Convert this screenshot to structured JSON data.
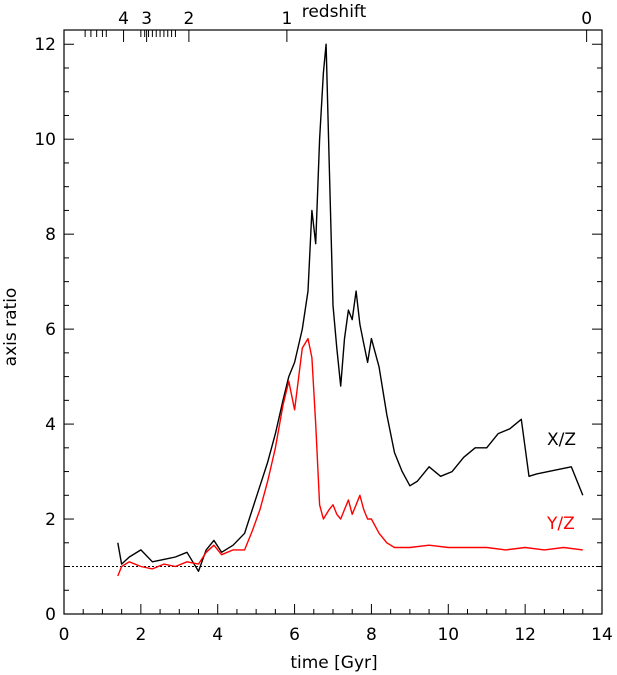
{
  "chart_data": {
    "type": "line",
    "title": "",
    "xlabel": "time [Gyr]",
    "ylabel": "axis ratio",
    "top_axis_label": "redshift",
    "xlim": [
      0,
      14
    ],
    "ylim": [
      0,
      12.3
    ],
    "grid": false,
    "x_ticks": [
      0,
      2,
      4,
      6,
      8,
      10,
      12,
      14
    ],
    "x_tick_labels": [
      "0",
      "2",
      "4",
      "6",
      "8",
      "10",
      "12",
      "14"
    ],
    "y_ticks": [
      0,
      2,
      4,
      6,
      8,
      10,
      12
    ],
    "y_tick_labels": [
      "0",
      "2",
      "4",
      "6",
      "8",
      "10",
      "12"
    ],
    "redshift_ticks": [
      {
        "label": "4",
        "time": 1.55
      },
      {
        "label": "3",
        "time": 2.15
      },
      {
        "label": "2",
        "time": 3.25
      },
      {
        "label": "1",
        "time": 5.8
      },
      {
        "label": "0",
        "time": 13.6
      }
    ],
    "redshift_minor_ticks": [
      0.55,
      0.7,
      0.85,
      1.0,
      1.1,
      2.0,
      2.1,
      2.2,
      2.3,
      2.4,
      2.5,
      2.6,
      2.7,
      2.8,
      2.9
    ],
    "reference_line": {
      "y": 1.0,
      "style": "dotted"
    },
    "series": [
      {
        "name": "X/Z",
        "color": "#000000",
        "x": [
          1.4,
          1.5,
          1.7,
          2.0,
          2.3,
          2.6,
          2.9,
          3.2,
          3.5,
          3.7,
          3.9,
          4.1,
          4.4,
          4.7,
          4.9,
          5.1,
          5.3,
          5.5,
          5.7,
          5.85,
          6.0,
          6.2,
          6.35,
          6.45,
          6.55,
          6.65,
          6.75,
          6.82,
          6.9,
          7.0,
          7.1,
          7.2,
          7.3,
          7.4,
          7.5,
          7.6,
          7.7,
          7.8,
          7.9,
          8.0,
          8.2,
          8.4,
          8.6,
          8.8,
          9.0,
          9.2,
          9.5,
          9.8,
          10.1,
          10.4,
          10.7,
          11.0,
          11.3,
          11.6,
          11.9,
          12.1,
          12.3,
          12.6,
          12.9,
          13.2,
          13.5
        ],
        "y": [
          1.5,
          1.05,
          1.2,
          1.35,
          1.1,
          1.15,
          1.2,
          1.3,
          0.9,
          1.35,
          1.55,
          1.3,
          1.45,
          1.7,
          2.2,
          2.7,
          3.2,
          3.8,
          4.5,
          5.0,
          5.3,
          6.0,
          6.8,
          8.5,
          7.8,
          10.0,
          11.4,
          12.0,
          9.5,
          6.5,
          5.6,
          4.8,
          5.8,
          6.4,
          6.2,
          6.8,
          6.1,
          5.7,
          5.3,
          5.8,
          5.2,
          4.2,
          3.4,
          3.0,
          2.7,
          2.8,
          3.1,
          2.9,
          3.0,
          3.3,
          3.5,
          3.5,
          3.8,
          3.9,
          4.1,
          2.9,
          2.95,
          3.0,
          3.05,
          3.1,
          2.5
        ]
      },
      {
        "name": "Y/Z",
        "color": "#ff0000",
        "x": [
          1.4,
          1.5,
          1.7,
          2.0,
          2.3,
          2.6,
          2.9,
          3.2,
          3.5,
          3.7,
          3.9,
          4.1,
          4.4,
          4.7,
          4.9,
          5.1,
          5.3,
          5.5,
          5.7,
          5.85,
          6.0,
          6.2,
          6.35,
          6.45,
          6.55,
          6.65,
          6.75,
          6.9,
          7.0,
          7.1,
          7.2,
          7.3,
          7.4,
          7.5,
          7.6,
          7.7,
          7.8,
          7.9,
          8.0,
          8.2,
          8.4,
          8.6,
          8.8,
          9.0,
          9.5,
          10.0,
          10.5,
          11.0,
          11.5,
          12.0,
          12.5,
          13.0,
          13.5
        ],
        "y": [
          0.8,
          1.0,
          1.1,
          1.0,
          0.95,
          1.05,
          1.0,
          1.1,
          1.05,
          1.3,
          1.45,
          1.25,
          1.35,
          1.35,
          1.75,
          2.2,
          2.8,
          3.5,
          4.4,
          4.9,
          4.3,
          5.6,
          5.8,
          5.4,
          4.0,
          2.3,
          2.0,
          2.2,
          2.3,
          2.1,
          2.0,
          2.2,
          2.4,
          2.1,
          2.3,
          2.5,
          2.2,
          2.0,
          2.0,
          1.7,
          1.5,
          1.4,
          1.4,
          1.4,
          1.45,
          1.4,
          1.4,
          1.4,
          1.35,
          1.4,
          1.35,
          1.4,
          1.35
        ]
      }
    ],
    "series_labels": [
      "X/Z",
      "Y/Z"
    ]
  }
}
